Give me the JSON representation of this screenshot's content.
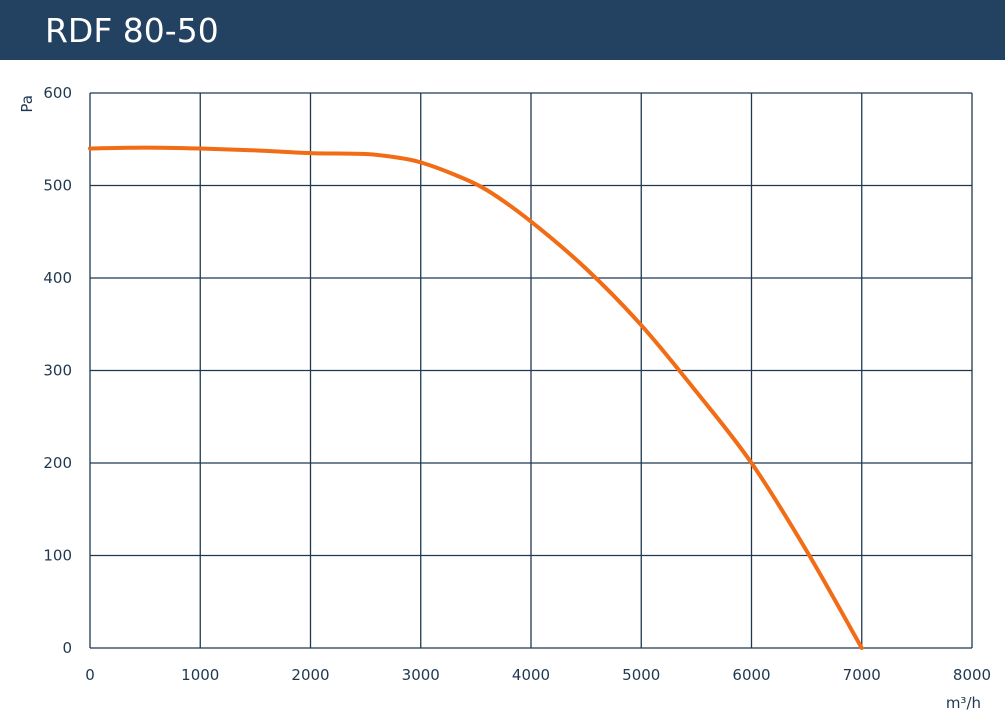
{
  "header": {
    "title": "RDF 80-50"
  },
  "colors": {
    "header_bg": "#234262",
    "grid": "#1f3850",
    "curve": "#f26b15",
    "text": "#1f3850"
  },
  "chart_data": {
    "type": "line",
    "title": "RDF 80-50",
    "xlabel": "m³/h",
    "ylabel": "Pa",
    "xlim": [
      0,
      8000
    ],
    "ylim": [
      0,
      600
    ],
    "x_ticks": [
      0,
      1000,
      2000,
      3000,
      4000,
      5000,
      6000,
      7000,
      8000
    ],
    "y_ticks": [
      0,
      100,
      200,
      300,
      400,
      500,
      600
    ],
    "grid": true,
    "series": [
      {
        "x": [
          0,
          500,
          1000,
          1500,
          2000,
          2500,
          2800,
          3000,
          3300,
          3600,
          4000,
          4500,
          5000,
          5500,
          6000,
          6500,
          7000
        ],
        "y": [
          540,
          541,
          540,
          538,
          535,
          534,
          530,
          525,
          512,
          495,
          461,
          410,
          349,
          277,
          200,
          105,
          0
        ]
      }
    ]
  }
}
